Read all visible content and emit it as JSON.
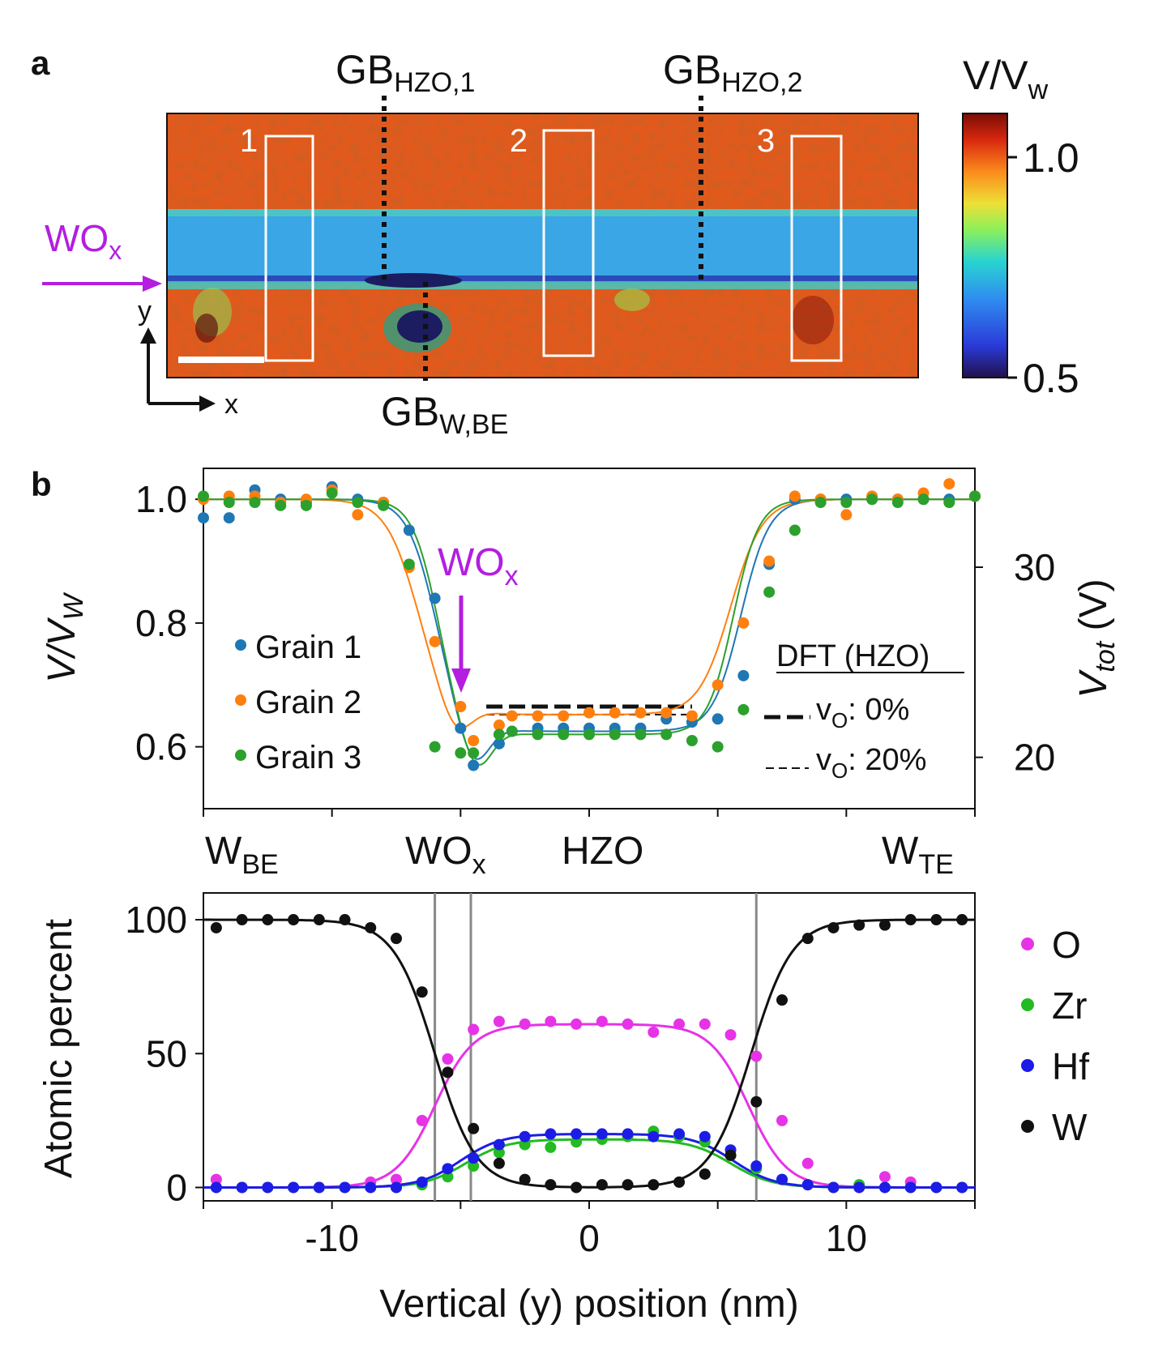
{
  "panel_a": {
    "letter": "a",
    "gb_top": [
      {
        "main": "GB",
        "sub": "HZO,1"
      },
      {
        "main": "GB",
        "sub": "HZO,2"
      }
    ],
    "gb_bottom": {
      "main": "GB",
      "sub": "W,BE"
    },
    "wox_label": {
      "main": "WO",
      "sub": "x"
    },
    "box_labels": [
      "1",
      "2",
      "3"
    ],
    "axis_x": "x",
    "axis_y": "y",
    "colorbar": {
      "title_main": "V/V",
      "title_sub": "w",
      "ticks": [
        "1.0",
        "0.5"
      ],
      "range": [
        0.5,
        1.1
      ]
    },
    "colors": {
      "accent": "#b31ee0",
      "high": "#e0561a",
      "mid": "#3aa6e6",
      "low": "#1c1c60"
    }
  },
  "panel_b": {
    "letter": "b",
    "region_labels": [
      {
        "main": "W",
        "sub": "BE"
      },
      {
        "main": "WO",
        "sub": "x"
      },
      {
        "main": "HZO",
        "sub": ""
      },
      {
        "main": "W",
        "sub": "TE"
      }
    ],
    "wox_arrow": {
      "main": "WO",
      "sub": "x"
    },
    "dft": {
      "title": "DFT (HZO)",
      "entries": [
        {
          "main": "v",
          "sub": "O",
          "rest": ": 0%"
        },
        {
          "main": "v",
          "sub": "O",
          "rest": ": 20%"
        }
      ]
    }
  },
  "chart_data": [
    {
      "type": "scatter",
      "ylabel": "V/V_W",
      "y2label": "V_tot (V)",
      "xlim": [
        -15,
        15
      ],
      "ylim": [
        0.5,
        1.05
      ],
      "y2lim": [
        17.3,
        35.2
      ],
      "yticks": [
        "0.6",
        "0.8",
        "1.0"
      ],
      "yticks_values": [
        0.6,
        0.8,
        1.0
      ],
      "y2ticks": [
        "20",
        "30"
      ],
      "y2ticks_values": [
        20,
        30
      ],
      "legend_position": "center-left",
      "series": [
        {
          "name": "Grain 1",
          "color": "#1f77b4",
          "x": [
            -15,
            -14,
            -13,
            -12,
            -11,
            -10,
            -9,
            -8,
            -7,
            -6,
            -5,
            -4.5,
            -3.5,
            -3,
            -2,
            -1,
            0,
            1,
            2,
            3,
            4,
            5,
            6,
            7,
            8,
            9,
            10,
            11,
            12,
            13,
            14,
            15
          ],
          "y": [
            0.97,
            0.97,
            1.015,
            1.0,
            0.995,
            1.02,
            1.0,
            0.995,
            0.95,
            0.84,
            0.63,
            0.57,
            0.605,
            0.625,
            0.63,
            0.63,
            0.63,
            0.63,
            0.63,
            0.645,
            0.64,
            0.645,
            0.715,
            0.895,
            1.0,
            1.0,
            1.0,
            1.0,
            1.0,
            1.0,
            1.0,
            1.005
          ]
        },
        {
          "name": "Grain 2",
          "color": "#ff7f0e",
          "x": [
            -15,
            -14,
            -13,
            -12,
            -11,
            -10,
            -9,
            -8,
            -7,
            -6,
            -5,
            -4.5,
            -3.5,
            -3,
            -2,
            -1,
            0,
            1,
            2,
            3,
            4,
            5,
            6,
            7,
            8,
            9,
            10,
            11,
            12,
            13,
            14,
            15
          ],
          "y": [
            1.0,
            1.005,
            1.005,
            0.995,
            1.0,
            1.015,
            0.975,
            0.995,
            0.89,
            0.77,
            0.665,
            0.61,
            0.635,
            0.65,
            0.65,
            0.65,
            0.655,
            0.655,
            0.655,
            0.655,
            0.65,
            0.7,
            0.8,
            0.9,
            1.005,
            1.0,
            0.975,
            1.005,
            1.0,
            1.01,
            1.025,
            1.005
          ]
        },
        {
          "name": "Grain 3",
          "color": "#2ca02c",
          "x": [
            -15,
            -14,
            -13,
            -12,
            -11,
            -10,
            -9,
            -8,
            -7,
            -6,
            -5,
            -4.5,
            -3.5,
            -3,
            -2,
            -1,
            0,
            1,
            2,
            3,
            4,
            5,
            6,
            7,
            8,
            9,
            10,
            11,
            12,
            13,
            14,
            15
          ],
          "y": [
            1.005,
            0.995,
            0.995,
            0.99,
            0.99,
            1.01,
            0.995,
            0.99,
            0.895,
            0.6,
            0.59,
            0.59,
            0.62,
            0.625,
            0.62,
            0.62,
            0.62,
            0.62,
            0.62,
            0.62,
            0.61,
            0.6,
            0.66,
            0.85,
            0.95,
            0.995,
            0.995,
            1.0,
            0.995,
            1.0,
            0.995,
            1.005
          ]
        }
      ],
      "dft_lines": [
        {
          "name": "vO: 0%",
          "x": [
            -4,
            4
          ],
          "y": 0.665
        },
        {
          "name": "vO: 20%",
          "x": [
            -4,
            4
          ],
          "y": 0.652
        }
      ]
    },
    {
      "type": "scatter",
      "xlabel": "Vertical (y) position (nm)",
      "ylabel": "Atomic percent",
      "xlim": [
        -15,
        15
      ],
      "ylim": [
        -5,
        110
      ],
      "xticks": [
        "-10",
        "0",
        "10"
      ],
      "xticks_values": [
        -10,
        0,
        10
      ],
      "yticks": [
        "0",
        "50",
        "100"
      ],
      "yticks_values": [
        0,
        50,
        100
      ],
      "vlines": [
        -6,
        -4.6,
        6.5
      ],
      "legend_position": "right",
      "series": [
        {
          "name": "O",
          "color": "#e633e6",
          "x": [
            -14.5,
            -13.5,
            -12.5,
            -11.5,
            -10.5,
            -9.5,
            -8.5,
            -7.5,
            -6.5,
            -5.5,
            -4.5,
            -3.5,
            -2.5,
            -1.5,
            -0.5,
            0.5,
            1.5,
            2.5,
            3.5,
            4.5,
            5.5,
            6.5,
            7.5,
            8.5,
            9.5,
            10.5,
            11.5,
            12.5,
            13.5,
            14.5
          ],
          "y": [
            3,
            0,
            0,
            0,
            0,
            0,
            2,
            3,
            25,
            48,
            59,
            62,
            61,
            62,
            61,
            62,
            61,
            58,
            61,
            61,
            57,
            49,
            25,
            9,
            0,
            0,
            4,
            2,
            0,
            0
          ]
        },
        {
          "name": "Zr",
          "color": "#22bb22",
          "x": [
            -14.5,
            -13.5,
            -12.5,
            -11.5,
            -10.5,
            -9.5,
            -8.5,
            -7.5,
            -6.5,
            -5.5,
            -4.5,
            -3.5,
            -2.5,
            -1.5,
            -0.5,
            0.5,
            1.5,
            2.5,
            3.5,
            4.5,
            5.5,
            6.5,
            7.5,
            8.5,
            9.5,
            10.5,
            11.5,
            12.5,
            13.5,
            14.5
          ],
          "y": [
            0,
            0,
            0,
            0,
            0,
            0,
            0,
            0,
            1,
            4,
            8,
            13,
            16,
            15,
            17,
            18,
            19,
            21,
            19,
            17,
            12,
            7,
            3,
            1,
            0,
            1,
            0,
            0,
            0,
            0
          ]
        },
        {
          "name": "Hf",
          "color": "#1c1ce6",
          "x": [
            -14.5,
            -13.5,
            -12.5,
            -11.5,
            -10.5,
            -9.5,
            -8.5,
            -7.5,
            -6.5,
            -5.5,
            -4.5,
            -3.5,
            -2.5,
            -1.5,
            -0.5,
            0.5,
            1.5,
            2.5,
            3.5,
            4.5,
            5.5,
            6.5,
            7.5,
            8.5,
            9.5,
            10.5,
            11.5,
            12.5,
            13.5,
            14.5
          ],
          "y": [
            0,
            0,
            0,
            0,
            0,
            0,
            0,
            0,
            2,
            7,
            11,
            16,
            19,
            20,
            20,
            20,
            20,
            19,
            20,
            19,
            14,
            8,
            3,
            1,
            0,
            0,
            0,
            0,
            0,
            0
          ]
        },
        {
          "name": "W",
          "color": "#111111",
          "x": [
            -14.5,
            -13.5,
            -12.5,
            -11.5,
            -10.5,
            -9.5,
            -8.5,
            -7.5,
            -6.5,
            -5.5,
            -4.5,
            -3.5,
            -2.5,
            -1.5,
            -0.5,
            0.5,
            1.5,
            2.5,
            3.5,
            4.5,
            5.5,
            6.5,
            7.5,
            8.5,
            9.5,
            10.5,
            11.5,
            12.5,
            13.5,
            14.5
          ],
          "y": [
            97,
            100,
            100,
            100,
            100,
            100,
            97,
            93,
            73,
            43,
            22,
            9,
            3,
            1,
            0,
            1,
            1,
            1,
            2,
            5,
            12,
            32,
            70,
            93,
            97,
            98,
            98,
            100,
            100,
            100
          ]
        }
      ]
    }
  ]
}
